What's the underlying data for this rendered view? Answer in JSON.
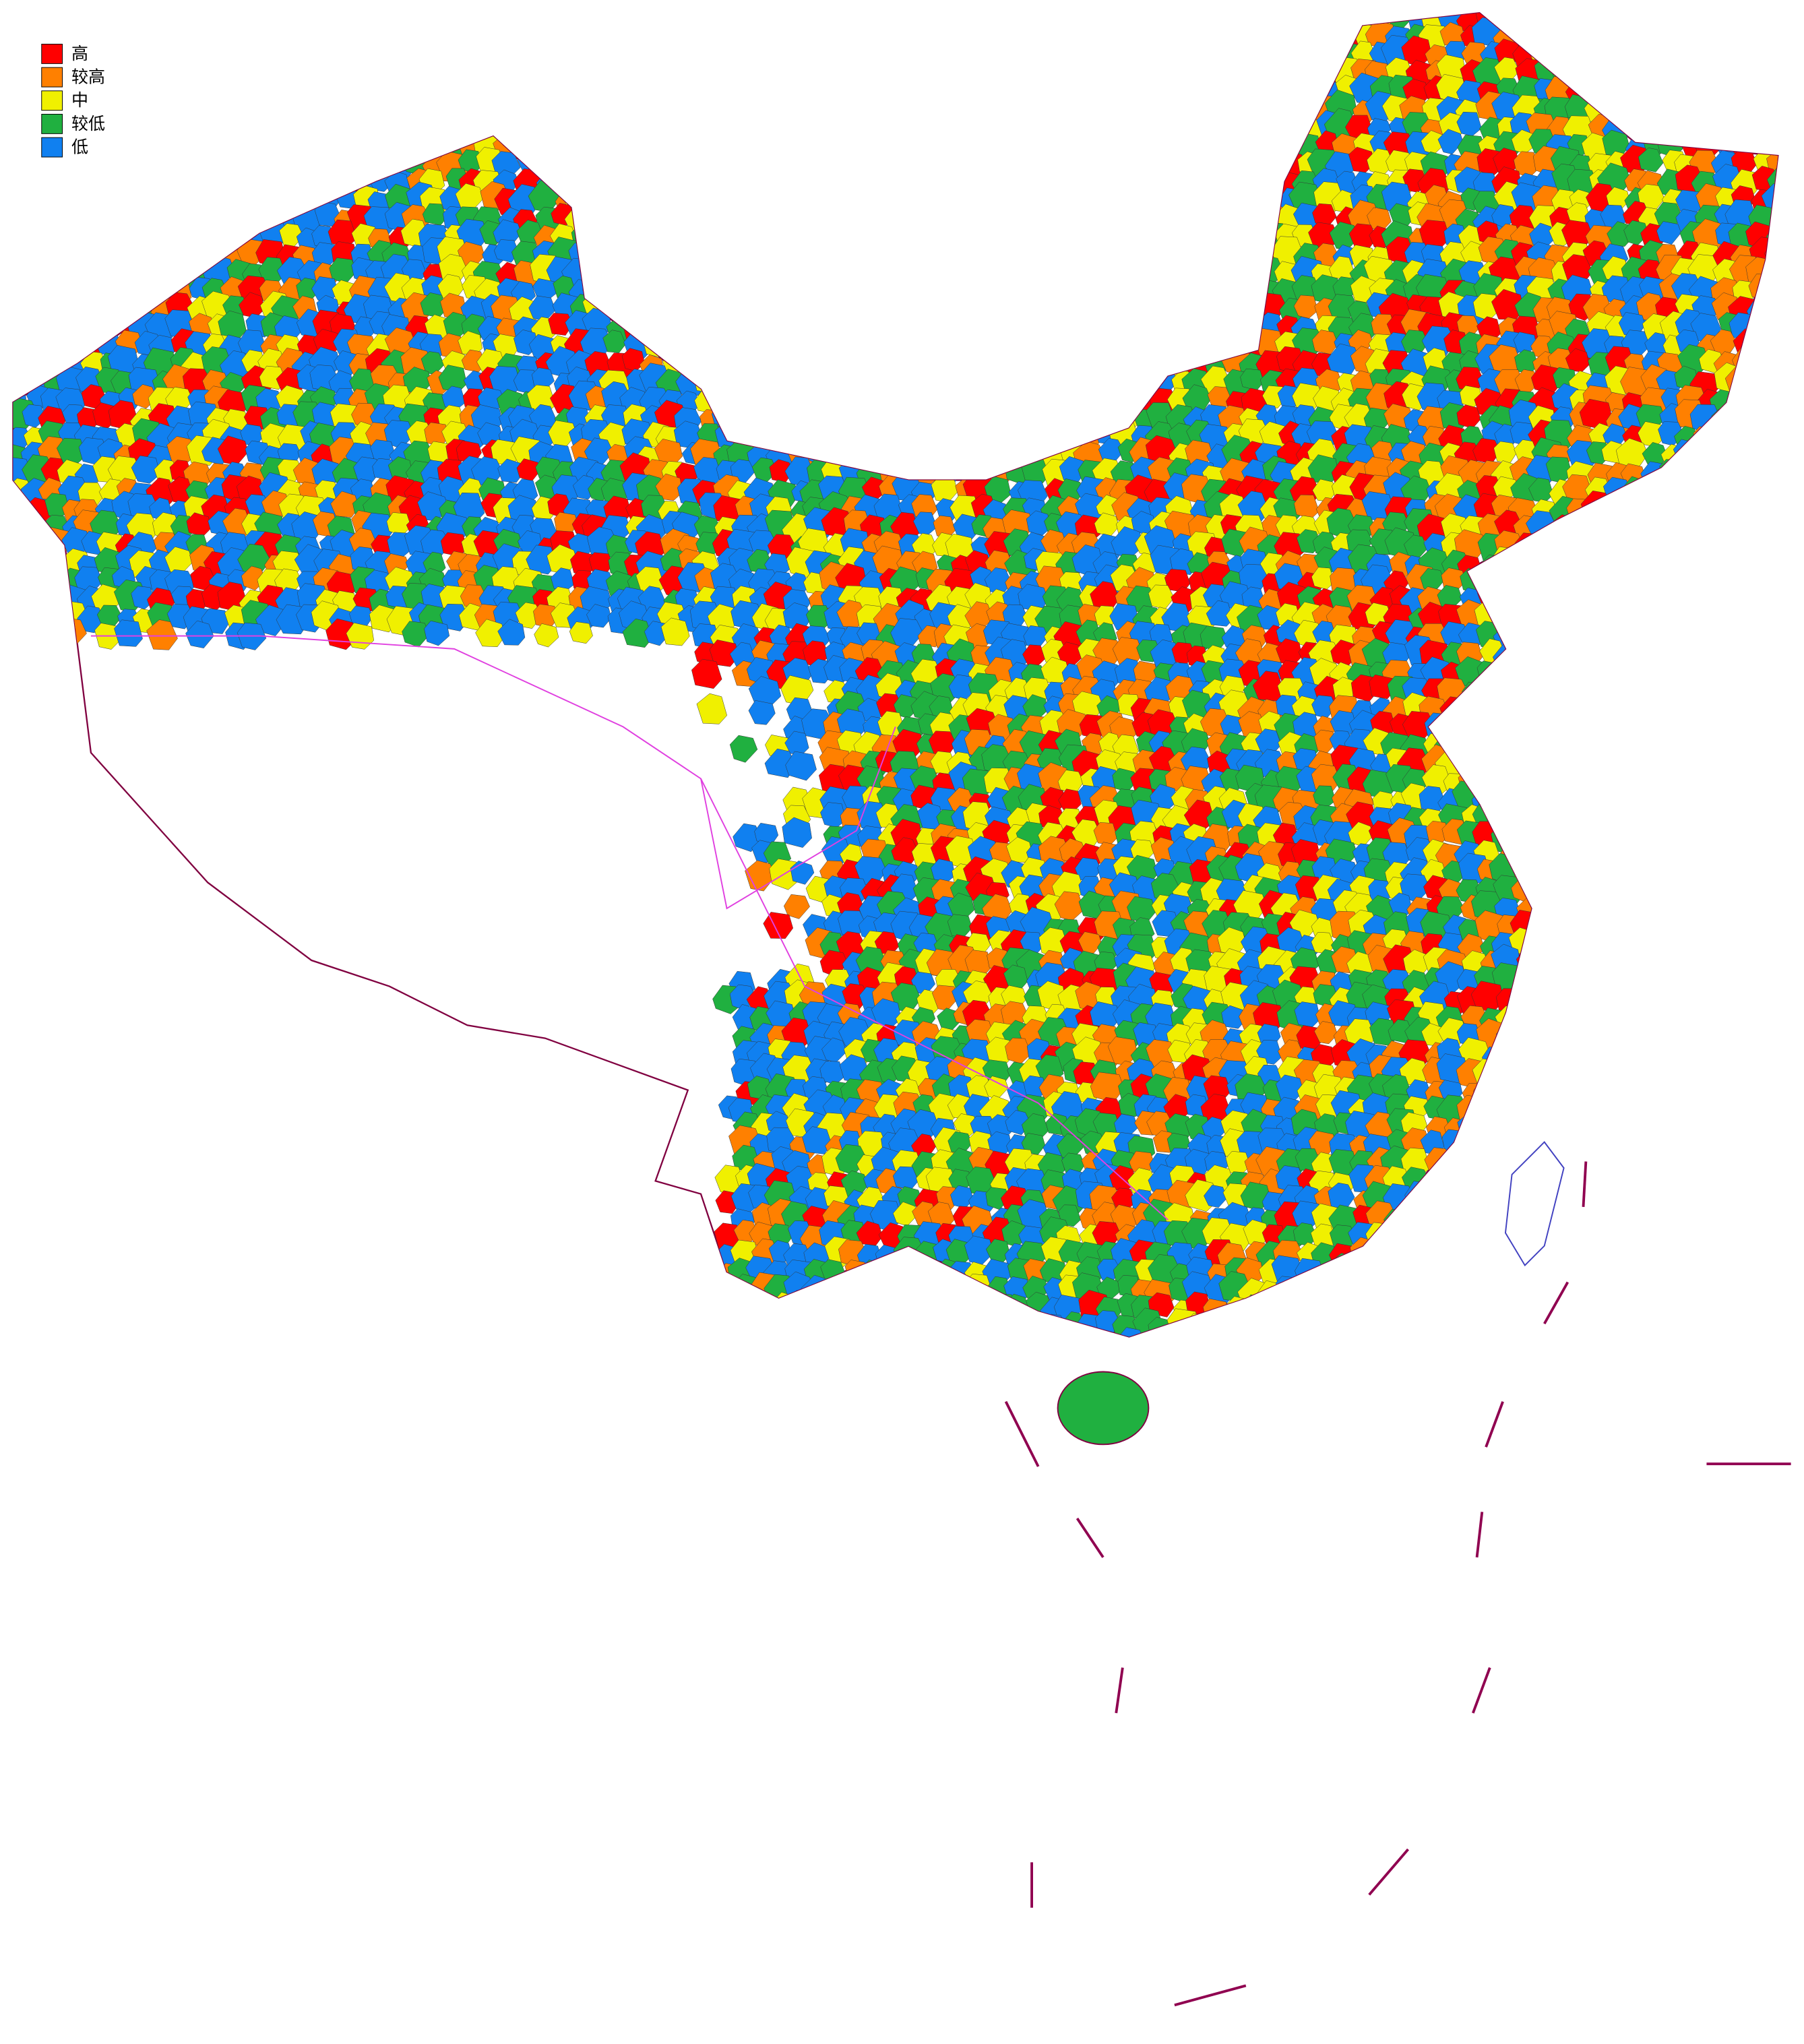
{
  "legend": {
    "items": [
      {
        "label": "高",
        "color": "#ff0000"
      },
      {
        "label": "较高",
        "color": "#ff8000"
      },
      {
        "label": "中",
        "color": "#f0f000"
      },
      {
        "label": "较低",
        "color": "#20b040"
      },
      {
        "label": "低",
        "color": "#1080f0"
      }
    ]
  }
}
